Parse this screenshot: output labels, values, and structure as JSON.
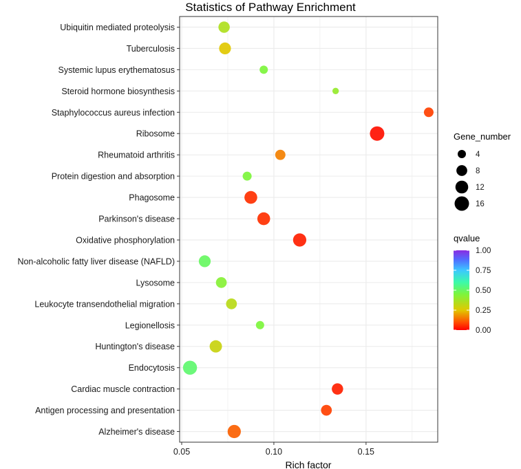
{
  "chart_data": {
    "type": "scatter",
    "title": "Statistics of Pathway Enrichment",
    "xlabel": "Rich factor",
    "ylabel": "",
    "xlim": [
      0.05,
      0.19
    ],
    "xticks": [
      0.05,
      0.1,
      0.15
    ],
    "xtick_labels": [
      "0.05",
      "0.10",
      "0.15"
    ],
    "grid": true,
    "points": [
      {
        "pathway": "Ubiquitin mediated proteolysis",
        "rich_factor": 0.073,
        "gene_number": 9,
        "qvalue": 0.35
      },
      {
        "pathway": "Tuberculosis",
        "rich_factor": 0.0735,
        "gene_number": 10,
        "qvalue": 0.25
      },
      {
        "pathway": "Systemic lupus erythematosus",
        "rich_factor": 0.0945,
        "gene_number": 4,
        "qvalue": 0.45
      },
      {
        "pathway": "Steroid hormone biosynthesis",
        "rich_factor": 0.1335,
        "gene_number": 2,
        "qvalue": 0.4
      },
      {
        "pathway": "Staphylococcus aureus infection",
        "rich_factor": 0.184,
        "gene_number": 6,
        "qvalue": 0.08
      },
      {
        "pathway": "Ribosome",
        "rich_factor": 0.156,
        "gene_number": 16,
        "qvalue": 0.02
      },
      {
        "pathway": "Rheumatoid arthritis",
        "rich_factor": 0.1035,
        "gene_number": 7,
        "qvalue": 0.16
      },
      {
        "pathway": "Protein digestion and absorption",
        "rich_factor": 0.0855,
        "gene_number": 5,
        "qvalue": 0.45
      },
      {
        "pathway": "Phagosome",
        "rich_factor": 0.0875,
        "gene_number": 12,
        "qvalue": 0.06
      },
      {
        "pathway": "Parkinson's disease",
        "rich_factor": 0.0945,
        "gene_number": 12,
        "qvalue": 0.06
      },
      {
        "pathway": "Oxidative phosphorylation",
        "rich_factor": 0.114,
        "gene_number": 13,
        "qvalue": 0.04
      },
      {
        "pathway": "Non-alcoholic fatty liver disease (NAFLD)",
        "rich_factor": 0.0625,
        "gene_number": 10,
        "qvalue": 0.5
      },
      {
        "pathway": "Lysosome",
        "rich_factor": 0.0715,
        "gene_number": 8,
        "qvalue": 0.43
      },
      {
        "pathway": "Leukocyte transendothelial migration",
        "rich_factor": 0.077,
        "gene_number": 8,
        "qvalue": 0.33
      },
      {
        "pathway": "Legionellosis",
        "rich_factor": 0.0925,
        "gene_number": 4,
        "qvalue": 0.45
      },
      {
        "pathway": "Huntington's disease",
        "rich_factor": 0.0685,
        "gene_number": 11,
        "qvalue": 0.3
      },
      {
        "pathway": "Endocytosis",
        "rich_factor": 0.0545,
        "gene_number": 15,
        "qvalue": 0.52
      },
      {
        "pathway": "Cardiac muscle contraction",
        "rich_factor": 0.1345,
        "gene_number": 9,
        "qvalue": 0.04
      },
      {
        "pathway": "Antigen processing and presentation",
        "rich_factor": 0.1285,
        "gene_number": 8,
        "qvalue": 0.08
      },
      {
        "pathway": "Alzheimer's disease",
        "rich_factor": 0.0785,
        "gene_number": 13,
        "qvalue": 0.12
      }
    ],
    "size_legend": {
      "title": "Gene_number",
      "values": [
        4,
        8,
        12,
        16
      ],
      "labels": [
        "4",
        "8",
        "12",
        "16"
      ]
    },
    "color_legend": {
      "title": "qvalue",
      "ticks": [
        1.0,
        0.75,
        0.5,
        0.25,
        0.0
      ],
      "tick_labels": [
        "1.00",
        "0.75",
        "0.50",
        "0.25",
        "0.00"
      ],
      "colors": [
        "#ff0000",
        "#ff6a00",
        "#e6c300",
        "#7dff3a",
        "#3aff9c",
        "#3ac7ff",
        "#4a6bff",
        "#8a2be2"
      ]
    },
    "panel_background": "#ffffff",
    "grid_color": "#ebebeb"
  }
}
